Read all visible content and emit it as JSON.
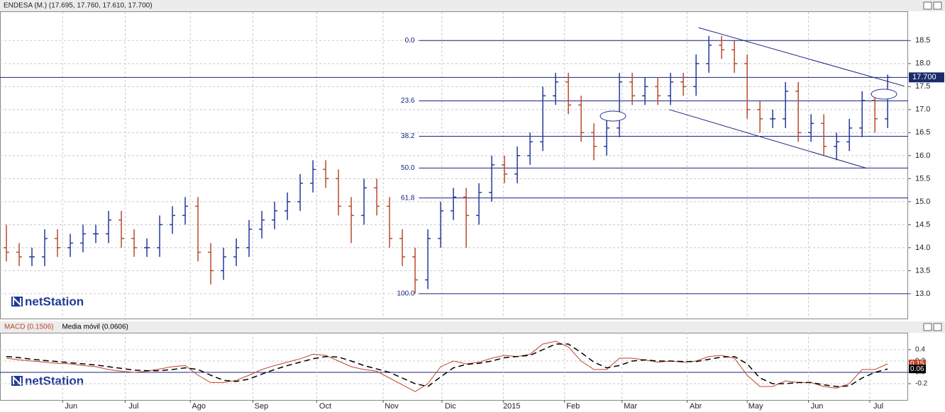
{
  "logo": "netStation",
  "chart_data": [
    {
      "type": "ohlc",
      "title": "ENDESA (M.) (17.695, 17.760, 17.610, 17.700)",
      "xlim": [
        -0.5,
        70.6
      ],
      "ylim": [
        12.46,
        19.12
      ],
      "yticks": [
        {
          "value": 13,
          "label": "13.0"
        },
        13.5,
        {
          "value": 14,
          "label": "14.0"
        },
        14.5,
        {
          "value": 15,
          "label": "15.0"
        },
        15.5,
        {
          "value": 16,
          "label": "16.0"
        },
        16.5,
        {
          "value": 17,
          "label": "17.0"
        },
        17.5,
        {
          "value": 18,
          "label": "18.0"
        },
        18.5
      ],
      "grid": true,
      "up_color": "#23399a",
      "down_color": "#b84a2e",
      "open": [
        14.0,
        13.9,
        13.8,
        13.8,
        14.2,
        14.0,
        14.1,
        14.3,
        14.3,
        14.6,
        14.2,
        14.0,
        14.0,
        14.5,
        14.7,
        14.9,
        13.9,
        13.5,
        13.8,
        14.0,
        14.4,
        14.6,
        14.8,
        15.0,
        15.4,
        15.7,
        15.5,
        14.9,
        14.7,
        15.3,
        14.9,
        14.2,
        13.8,
        13.3,
        14.2,
        14.8,
        15.1,
        14.7,
        15.2,
        15.8,
        15.6,
        16.0,
        16.3,
        17.3,
        17.6,
        17.1,
        16.5,
        16.2,
        16.6,
        17.6,
        17.3,
        17.5,
        17.3,
        17.6,
        17.5,
        18.0,
        18.4,
        18.3,
        18.0,
        17.0,
        16.8,
        16.8,
        17.4,
        16.5,
        16.7,
        16.2,
        16.3,
        16.6,
        17.2,
        16.8
      ],
      "high": [
        14.5,
        14.1,
        14.0,
        14.4,
        14.4,
        14.3,
        14.5,
        14.5,
        14.8,
        14.8,
        14.4,
        14.2,
        14.7,
        14.9,
        15.1,
        15.1,
        14.1,
        14.0,
        14.2,
        14.6,
        14.8,
        15.0,
        15.2,
        15.6,
        15.9,
        15.9,
        15.7,
        15.1,
        15.5,
        15.5,
        15.1,
        14.4,
        14.0,
        14.4,
        15.0,
        15.3,
        15.3,
        15.4,
        16.0,
        16.0,
        16.2,
        16.5,
        17.5,
        17.8,
        17.8,
        17.3,
        16.7,
        16.8,
        17.8,
        17.8,
        17.7,
        17.7,
        17.8,
        17.8,
        18.2,
        18.6,
        18.6,
        18.5,
        18.2,
        17.2,
        17.0,
        17.6,
        17.6,
        16.9,
        16.9,
        16.5,
        16.8,
        17.4,
        17.4,
        17.76
      ],
      "low": [
        13.7,
        13.6,
        13.6,
        13.6,
        13.8,
        13.8,
        13.9,
        14.1,
        14.1,
        14.0,
        13.8,
        13.8,
        13.8,
        14.3,
        14.5,
        13.7,
        13.2,
        13.3,
        13.6,
        13.8,
        14.2,
        14.4,
        14.6,
        14.8,
        15.2,
        15.3,
        14.7,
        14.1,
        14.5,
        14.7,
        14.0,
        13.6,
        13.0,
        13.1,
        14.0,
        14.6,
        14.0,
        14.5,
        15.0,
        15.4,
        15.4,
        15.8,
        16.1,
        17.1,
        16.9,
        16.3,
        15.9,
        16.0,
        16.4,
        17.1,
        17.1,
        17.1,
        17.1,
        17.3,
        17.3,
        17.8,
        18.1,
        17.8,
        16.8,
        16.5,
        16.6,
        16.6,
        16.3,
        16.3,
        16.0,
        15.9,
        16.1,
        16.4,
        16.5,
        16.6
      ],
      "close": [
        13.9,
        13.8,
        13.8,
        14.2,
        14.0,
        14.1,
        14.3,
        14.3,
        14.6,
        14.2,
        14.0,
        14.0,
        14.5,
        14.7,
        14.9,
        13.9,
        13.5,
        13.8,
        14.0,
        14.4,
        14.6,
        14.8,
        15.0,
        15.4,
        15.7,
        15.5,
        14.9,
        14.7,
        15.3,
        14.9,
        14.2,
        13.8,
        13.3,
        14.2,
        14.8,
        15.1,
        14.7,
        15.2,
        15.8,
        15.6,
        16.0,
        16.3,
        17.3,
        17.6,
        17.1,
        16.5,
        16.2,
        16.6,
        17.6,
        17.3,
        17.5,
        17.3,
        17.6,
        17.5,
        18.0,
        18.4,
        18.3,
        18.0,
        17.0,
        16.8,
        16.8,
        17.4,
        16.5,
        16.7,
        16.2,
        16.3,
        16.6,
        17.2,
        16.8,
        17.7
      ],
      "last_value": 17.7,
      "last_value_label": "17.700",
      "fib_start": 32.3,
      "fib_levels": [
        {
          "label": "0.0",
          "value": 18.5
        },
        {
          "label": "23.6",
          "value": 17.19
        },
        {
          "label": "38.2",
          "value": 16.42
        },
        {
          "label": "50.0",
          "value": 15.73
        },
        {
          "label": "61.8",
          "value": 15.08
        },
        {
          "label": "100.0",
          "value": 13.0
        }
      ],
      "trendlines": [
        {
          "x": [
            54.2,
            70.3
          ],
          "y": [
            18.78,
            17.51
          ]
        },
        {
          "x": [
            51.9,
            67.3
          ],
          "y": [
            17.0,
            15.73
          ]
        }
      ]
    },
    {
      "type": "line",
      "xlim": [
        -0.5,
        70.6
      ],
      "ylim": [
        -0.4875,
        0.7
      ],
      "yticks": [
        -0.2,
        {
          "value": 0,
          "label": "0.0"
        },
        0.2,
        0.4
      ],
      "grid": true,
      "xticks": [
        {
          "value": 4.4,
          "label": "Jun"
        },
        {
          "value": 9.3,
          "label": "Jul"
        },
        {
          "value": 14.4,
          "label": "Ago"
        },
        {
          "value": 19.3,
          "label": "Sep"
        },
        {
          "value": 24.3,
          "label": "Oct"
        },
        {
          "value": 29.5,
          "label": "Nov"
        },
        {
          "value": 34.1,
          "label": "Dic"
        },
        {
          "value": 38.9,
          "label": "2015"
        },
        {
          "value": 43.7,
          "label": "Feb"
        },
        {
          "value": 48.2,
          "label": "Mar"
        },
        {
          "value": 53.3,
          "label": "Abr"
        },
        {
          "value": 58.0,
          "label": "May"
        },
        {
          "value": 62.8,
          "label": "Jun"
        },
        {
          "value": 67.6,
          "label": "Jul"
        }
      ],
      "series": [
        {
          "name": "MACD (0.1506)",
          "color": "#c0442a",
          "dashed": false,
          "values": [
            0.25,
            0.22,
            0.2,
            0.18,
            0.16,
            0.15,
            0.12,
            0.1,
            0.05,
            0.02,
            0.0,
            0.02,
            0.06,
            0.1,
            0.12,
            -0.05,
            -0.18,
            -0.18,
            -0.14,
            -0.05,
            0.05,
            0.12,
            0.18,
            0.24,
            0.32,
            0.3,
            0.2,
            0.1,
            0.05,
            0.02,
            -0.1,
            -0.22,
            -0.34,
            -0.2,
            0.1,
            0.2,
            0.15,
            0.18,
            0.25,
            0.3,
            0.28,
            0.32,
            0.5,
            0.55,
            0.45,
            0.2,
            0.05,
            0.05,
            0.25,
            0.25,
            0.22,
            0.18,
            0.2,
            0.18,
            0.2,
            0.28,
            0.3,
            0.25,
            -0.05,
            -0.25,
            -0.25,
            -0.15,
            -0.18,
            -0.18,
            -0.25,
            -0.28,
            -0.2,
            0.05,
            0.05,
            0.15
          ]
        },
        {
          "name": "Media móvil (0.0606)",
          "color": "#000000",
          "dashed": true,
          "values": [
            0.28,
            0.26,
            0.23,
            0.21,
            0.19,
            0.17,
            0.15,
            0.13,
            0.1,
            0.07,
            0.04,
            0.03,
            0.03,
            0.05,
            0.08,
            0.05,
            -0.05,
            -0.14,
            -0.16,
            -0.12,
            -0.03,
            0.05,
            0.12,
            0.18,
            0.24,
            0.28,
            0.27,
            0.2,
            0.12,
            0.06,
            0.0,
            -0.1,
            -0.2,
            -0.25,
            -0.08,
            0.08,
            0.14,
            0.16,
            0.2,
            0.26,
            0.28,
            0.3,
            0.4,
            0.5,
            0.5,
            0.35,
            0.18,
            0.08,
            0.12,
            0.2,
            0.22,
            0.2,
            0.2,
            0.19,
            0.19,
            0.23,
            0.27,
            0.28,
            0.15,
            -0.1,
            -0.2,
            -0.2,
            -0.18,
            -0.18,
            -0.22,
            -0.25,
            -0.24,
            -0.1,
            0.0,
            0.06
          ]
        }
      ],
      "end_values": [
        0.15,
        0.06
      ],
      "end_value_labels": [
        "0.15",
        "0.06"
      ]
    }
  ]
}
